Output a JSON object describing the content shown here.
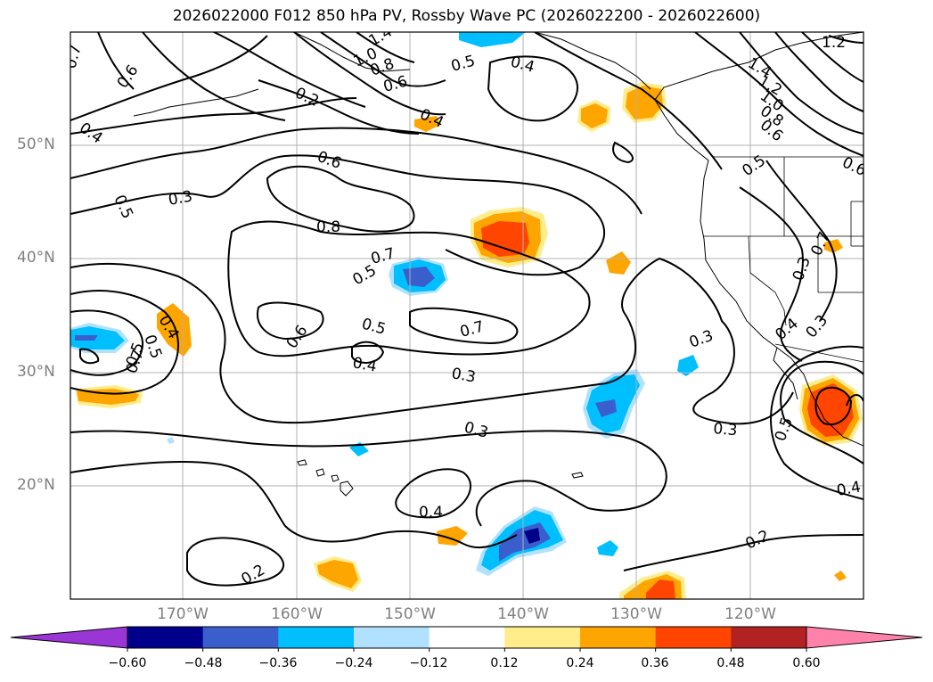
{
  "title": "2026022000 F012 850 hPa PV, Rossby Wave PC (2026022200 - 2026022600)",
  "map": {
    "variable": "850 hPa PV",
    "overlay": "Rossby Wave PC",
    "lat_labels": [
      "50°N",
      "40°N",
      "30°N",
      "20°N"
    ],
    "lon_labels": [
      "170°W",
      "160°W",
      "150°W",
      "140°W",
      "130°W",
      "120°W"
    ],
    "contour_labels": [
      "0.7",
      "0.6",
      "1.4",
      "1.0",
      "0.8",
      "0.6",
      "0.2",
      "0.5",
      "0.4",
      "1.2",
      "1.4",
      "1.2",
      "1.0",
      "0.8",
      "0.6",
      "0.4",
      "0.4",
      "0.5",
      "0.6",
      "0.3",
      "0.5",
      "0.8",
      "0.7",
      "0.5",
      "0.7",
      "0.6",
      "0.5",
      "0.4",
      "0.4",
      "0.3",
      "0.3",
      "0.3",
      "0.5",
      "0.7",
      "0.4",
      "0.3",
      "0.4",
      "0.3",
      "0.3",
      "0.4",
      "0.5",
      "0.2",
      "0.2",
      "0.6",
      "0.5",
      "0.7"
    ],
    "colors": {
      "land": "#ffffff",
      "grid": "#b0b0b0",
      "contour": "#000000"
    }
  },
  "colorbar": {
    "ticks": [
      "−0.60",
      "−0.48",
      "−0.36",
      "−0.24",
      "−0.12",
      "0.12",
      "0.24",
      "0.36",
      "0.48",
      "0.60"
    ],
    "colors": [
      "#9a35d6",
      "#00008b",
      "#3a5fcd",
      "#00bfff",
      "#b0e2ff",
      "#ffffff",
      "#ffec8b",
      "#ffa500",
      "#ff4500",
      "#b22222",
      "#ff82ab"
    ]
  }
}
